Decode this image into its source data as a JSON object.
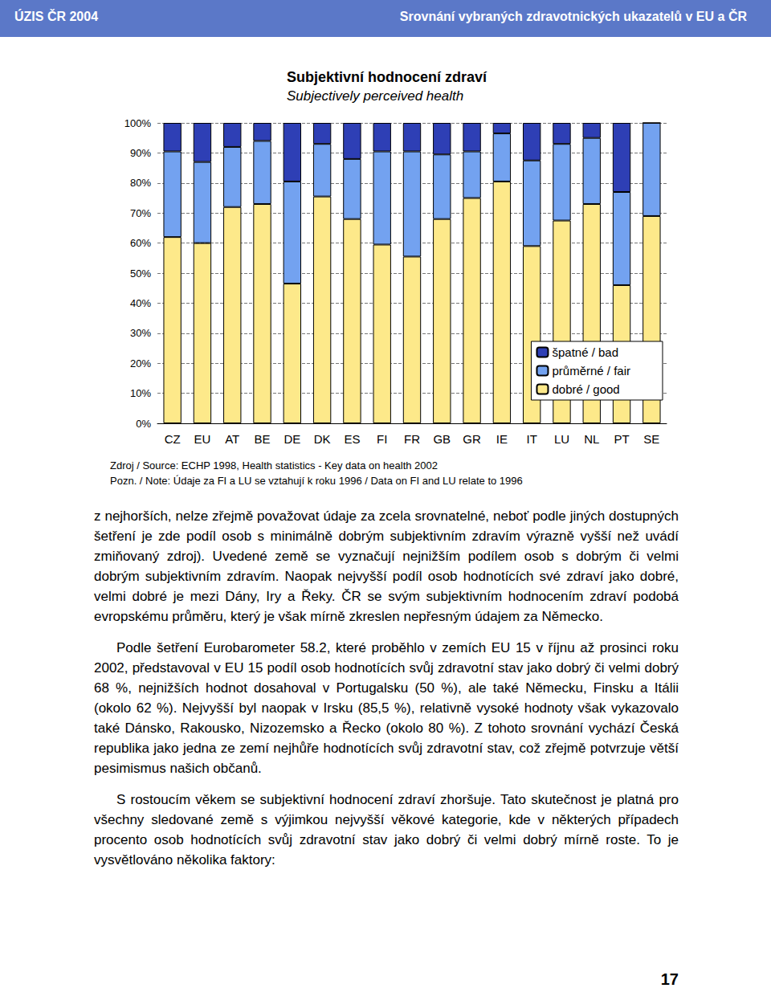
{
  "header": {
    "left": "ÚZIS ČR 2004",
    "right": "Srovnání vybraných zdravotnických ukazatelů v EU a ČR"
  },
  "chart_data": {
    "type": "bar",
    "title": "Subjektivní hodnocení zdraví",
    "subtitle": "Subjectively perceived health",
    "categories": [
      "CZ",
      "EU",
      "AT",
      "BE",
      "DE",
      "DK",
      "ES",
      "FI",
      "FR",
      "GB",
      "GR",
      "IE",
      "IT",
      "LU",
      "NL",
      "PT",
      "SE"
    ],
    "stacked": true,
    "legend": "lower right",
    "grid": true,
    "ylim": [
      0,
      100
    ],
    "yticks": [
      {
        "value": 0,
        "label": "0%"
      },
      {
        "value": 10,
        "label": "10%"
      },
      {
        "value": 20,
        "label": "20%"
      },
      {
        "value": 30,
        "label": "30%"
      },
      {
        "value": 40,
        "label": "40%"
      },
      {
        "value": 50,
        "label": "50%"
      },
      {
        "value": 60,
        "label": "60%"
      },
      {
        "value": 70,
        "label": "70%"
      },
      {
        "value": 80,
        "label": "80%"
      },
      {
        "value": 90,
        "label": "90%"
      },
      {
        "value": 100,
        "label": "100%"
      }
    ],
    "series": [
      {
        "name": "dobré / good",
        "color": "#fde98a",
        "values": [
          62,
          60,
          72,
          73,
          46.5,
          75.5,
          68,
          59.5,
          55.5,
          68,
          75,
          80.5,
          59,
          67.5,
          73,
          46,
          69
        ]
      },
      {
        "name": "průměrné / fair",
        "color": "#73a2f0",
        "values": [
          28.5,
          27,
          20,
          21,
          34,
          17.5,
          20,
          31,
          35,
          21.5,
          15.5,
          16,
          28.5,
          25.5,
          22,
          31,
          31
        ]
      },
      {
        "name": "špatné / bad",
        "color": "#2e3fb5",
        "values": [
          9.5,
          13,
          8,
          6,
          19.5,
          7,
          12,
          9.5,
          9.5,
          10.5,
          9.5,
          3.5,
          12.5,
          7,
          5,
          23,
          0
        ]
      }
    ],
    "source": "Zdroj / Source: ECHP 1998, Health statistics - Key data on health 2002",
    "note": "Pozn. / Note: Údaje za FI a LU se vztahují k roku 1996 / Data on FI and LU relate to 1996"
  },
  "paragraphs": [
    {
      "indent": false,
      "text": "z nejhorších, nelze zřejmě považovat údaje za zcela srovnatelné, neboť podle jiných dostupných šetření je zde podíl osob s minimálně dobrým subjektivním zdravím výrazně vyšší než uvádí zmiňovaný zdroj). Uvedené země se vyznačují nejnižším podílem osob s dobrým či velmi dobrým subjektivním zdravím. Naopak nejvyšší podíl osob hodnotících své zdraví jako dobré, velmi dobré je mezi Dány, Iry a Řeky. ČR se svým subjektivním hodnocením zdraví podobá evropskému průměru, který je však mírně zkreslen nepřesným údajem za Německo."
    },
    {
      "indent": true,
      "text": "Podle šetření Eurobarometer 58.2, které proběhlo v zemích EU 15 v říjnu až prosinci roku 2002, představoval v EU 15 podíl osob hodnotících svůj zdravotní stav jako dobrý či velmi dobrý 68 %, nejnižších hodnot dosahoval v Portugalsku (50 %), ale také Německu, Finsku a Itálii (okolo 62 %). Nejvyšší byl naopak v Irsku (85,5 %), relativně vysoké hodnoty však vykazovalo také Dánsko, Rakousko, Nizozemsko a Řecko (okolo 80 %). Z tohoto srovnání vychází Česká republika jako jedna ze zemí nejhůře hodnotících svůj zdravotní stav, což zřejmě potvrzuje větší pesimismus našich občanů."
    },
    {
      "indent": true,
      "text": "S rostoucím věkem se subjektivní hodnocení zdraví zhoršuje. Tato skutečnost je platná pro všechny sledované země s výjimkou nejvyšší věkové kategorie, kde v některých případech procento osob hodnotících svůj zdravotní stav jako dobrý či velmi dobrý mírně roste. To je vysvětlováno několika faktory:"
    }
  ],
  "page_number": "17"
}
